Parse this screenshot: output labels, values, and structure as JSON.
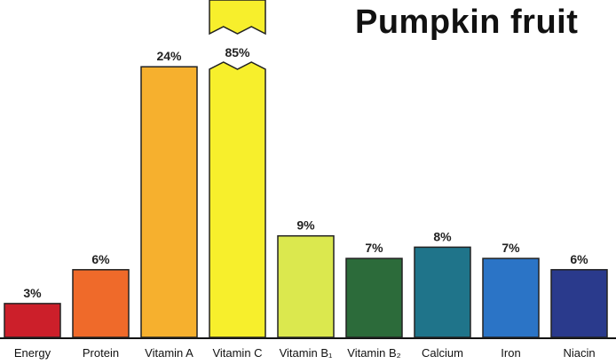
{
  "chart_data": {
    "type": "bar",
    "title": "Pumpkin fruit",
    "categories": [
      "Energy",
      "Protein",
      "Vitamin A",
      "Vitamin C",
      "Vitamin B₁",
      "Vitamin B₂",
      "Calcium",
      "Iron",
      "Niacin"
    ],
    "values": [
      3,
      6,
      24,
      85,
      9,
      7,
      8,
      7,
      6
    ],
    "value_labels": [
      "3%",
      "6%",
      "24%",
      "85%",
      "9%",
      "7%",
      "8%",
      "7%",
      "6%"
    ],
    "colors": [
      "#cc1f2a",
      "#ef6a2a",
      "#f6b02e",
      "#f7ef2c",
      "#dbe84e",
      "#2c6b3a",
      "#1f748a",
      "#2b74c6",
      "#2a3a8c"
    ],
    "ylim": [
      0,
      100
    ],
    "broken_bar": "Vitamin C",
    "grid": false,
    "legend": "none"
  }
}
